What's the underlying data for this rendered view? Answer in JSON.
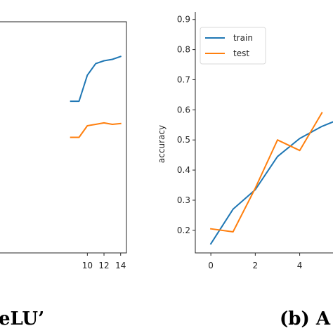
{
  "chart_data": [
    {
      "type": "line",
      "panel": "left (partially cropped)",
      "caption": "eLU’",
      "xlabel": "",
      "ylabel": "",
      "xlim": [
        -0.5,
        14.7
      ],
      "ylim": [
        0.12,
        0.92
      ],
      "xticks": [
        10,
        12,
        14
      ],
      "yticks": [],
      "grid": false,
      "legend": null,
      "series": [
        {
          "name": "train",
          "color": "#1f77b4",
          "x": [
            8,
            9,
            10,
            11,
            12,
            13,
            14
          ],
          "y": [
            0.645,
            0.645,
            0.735,
            0.775,
            0.785,
            0.79,
            0.8
          ]
        },
        {
          "name": "test",
          "color": "#ff7f0e",
          "x": [
            8,
            9,
            10,
            11,
            12,
            13,
            14
          ],
          "y": [
            0.52,
            0.52,
            0.56,
            0.565,
            0.57,
            0.565,
            0.568
          ]
        }
      ]
    },
    {
      "type": "line",
      "panel": "right (partially cropped)",
      "caption": "(b) A",
      "xlabel": "",
      "ylabel": "accuracy",
      "xlim": [
        -0.7,
        5.5
      ],
      "ylim": [
        0.125,
        0.925
      ],
      "xticks": [
        0,
        2,
        4
      ],
      "yticks": [
        0.2,
        0.3,
        0.4,
        0.5,
        0.6,
        0.7,
        0.8,
        0.9
      ],
      "grid": false,
      "legend": "top-left",
      "series": [
        {
          "name": "train",
          "color": "#1f77b4",
          "x": [
            0,
            1,
            2,
            3,
            4,
            5,
            5.5
          ],
          "y": [
            0.155,
            0.27,
            0.335,
            0.445,
            0.505,
            0.545,
            0.56
          ]
        },
        {
          "name": "test",
          "color": "#ff7f0e",
          "x": [
            0,
            1,
            2,
            3,
            4,
            5
          ],
          "y": [
            0.205,
            0.195,
            0.34,
            0.5,
            0.465,
            0.59
          ]
        }
      ]
    }
  ]
}
